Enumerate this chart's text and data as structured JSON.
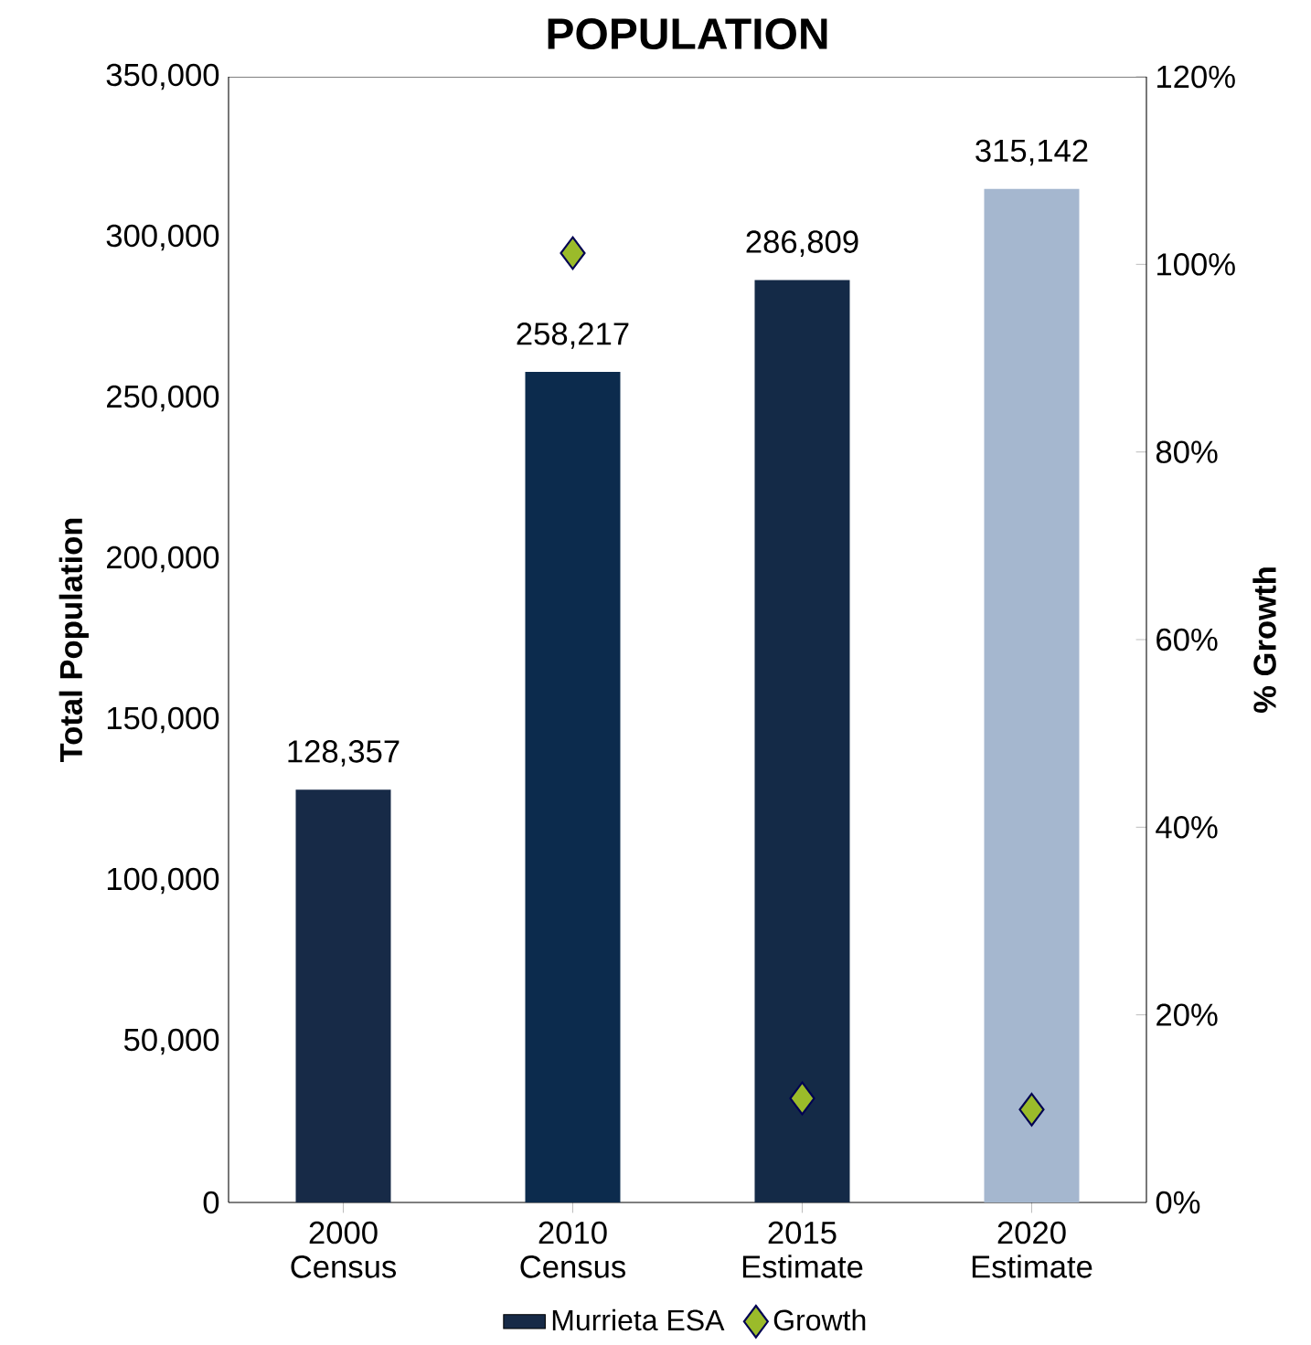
{
  "chart_data": {
    "type": "bar",
    "title": "POPULATION",
    "ylabel": "Total Population",
    "y2label": "% Growth",
    "categories": [
      "2000 Census",
      "2010 Census",
      "2015 Estimate",
      "2020 Estimate"
    ],
    "series": [
      {
        "name": "Murrieta ESA",
        "colors": [
          "#172a47",
          "#0c2b4d",
          "#142a47",
          "#a5b7cf"
        ],
        "values": [
          128357,
          258217,
          286809,
          315142
        ],
        "value_labels": [
          "128,357",
          "258,217",
          "286,809",
          "315,142"
        ]
      },
      {
        "name": "Growth",
        "type": "scatter",
        "axis": "y2",
        "color": "#9bbb2a",
        "marker": "diamond",
        "values": [
          null,
          101.2,
          11.1,
          9.9
        ]
      }
    ],
    "ylim": [
      0,
      350000
    ],
    "yticks": [
      {
        "value": 0,
        "label": "0"
      },
      {
        "value": 50000,
        "label": "50,000"
      },
      {
        "value": 100000,
        "label": "100,000"
      },
      {
        "value": 150000,
        "label": "150,000"
      },
      {
        "value": 200000,
        "label": "200,000"
      },
      {
        "value": 250000,
        "label": "250,000"
      },
      {
        "value": 300000,
        "label": "300,000"
      },
      {
        "value": 350000,
        "label": "350,000"
      }
    ],
    "y2lim": [
      0,
      120
    ],
    "y2ticks": [
      {
        "value": 0,
        "label": "0%"
      },
      {
        "value": 20,
        "label": "20%"
      },
      {
        "value": 40,
        "label": "40%"
      },
      {
        "value": 60,
        "label": "60%"
      },
      {
        "value": 80,
        "label": "80%"
      },
      {
        "value": 100,
        "label": "100%"
      },
      {
        "value": 120,
        "label": "120%"
      }
    ],
    "legend": "bottom",
    "grid": false
  }
}
